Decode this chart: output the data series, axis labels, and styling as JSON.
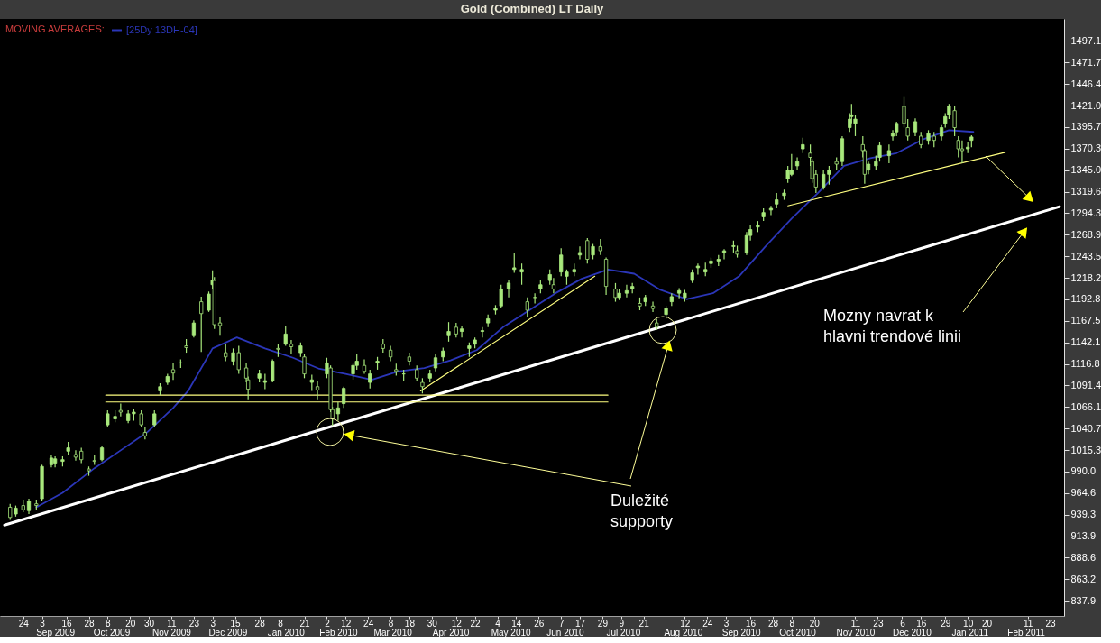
{
  "chart_data": {
    "type": "candlestick",
    "title": "Gold (Combined) LT Daily",
    "legend_title": "MOVING AVERAGES:",
    "legend": "top left",
    "annotations": [
      "Mozny navrat k\nhlavni trendové linii",
      "Duležité\nsupporty"
    ],
    "color": "#a8e87c",
    "x": [
      "2009-08-17",
      "2009-08-20",
      "2009-08-24",
      "2009-08-27",
      "2009-08-31",
      "2009-09-03",
      "2009-09-08",
      "2009-09-10",
      "2009-09-14",
      "2009-09-17",
      "2009-09-21",
      "2009-09-24",
      "2009-09-28",
      "2009-10-01",
      "2009-10-05",
      "2009-10-08",
      "2009-10-12",
      "2009-10-15",
      "2009-10-19",
      "2009-10-22",
      "2009-10-26",
      "2009-10-28",
      "2009-11-02",
      "2009-11-05",
      "2009-11-09",
      "2009-11-12",
      "2009-11-16",
      "2009-11-19",
      "2009-11-23",
      "2009-11-27",
      "2009-12-01",
      "2009-12-03",
      "2009-12-04",
      "2009-12-07",
      "2009-12-10",
      "2009-12-14",
      "2009-12-17",
      "2009-12-21",
      "2009-12-22",
      "2009-12-28",
      "2009-12-31",
      "2010-01-04",
      "2010-01-07",
      "2010-01-11",
      "2010-01-14",
      "2010-01-19",
      "2010-01-21",
      "2010-01-25",
      "2010-01-28",
      "2010-02-02",
      "2010-02-04",
      "2010-02-05",
      "2010-02-08",
      "2010-02-11",
      "2010-02-16",
      "2010-02-18",
      "2010-02-22",
      "2010-02-25",
      "2010-03-01",
      "2010-03-04",
      "2010-03-08",
      "2010-03-11",
      "2010-03-15",
      "2010-03-18",
      "2010-03-22",
      "2010-03-25",
      "2010-03-29",
      "2010-04-01",
      "2010-04-05",
      "2010-04-08",
      "2010-04-12",
      "2010-04-15",
      "2010-04-19",
      "2010-04-22",
      "2010-04-26",
      "2010-04-29",
      "2010-05-03",
      "2010-05-06",
      "2010-05-10",
      "2010-05-13",
      "2010-05-17",
      "2010-05-20",
      "2010-05-24",
      "2010-05-27",
      "2010-06-01",
      "2010-06-03",
      "2010-06-07",
      "2010-06-10",
      "2010-06-14",
      "2010-06-17",
      "2010-06-21",
      "2010-06-24",
      "2010-06-28",
      "2010-07-01",
      "2010-07-06",
      "2010-07-08",
      "2010-07-12",
      "2010-07-15",
      "2010-07-19",
      "2010-07-22",
      "2010-07-26",
      "2010-07-28",
      "2010-08-02",
      "2010-08-05",
      "2010-08-09",
      "2010-08-12",
      "2010-08-16",
      "2010-08-19",
      "2010-08-23",
      "2010-08-26",
      "2010-08-30",
      "2010-09-02",
      "2010-09-07",
      "2010-09-09",
      "2010-09-14",
      "2010-09-16",
      "2010-09-20",
      "2010-09-23",
      "2010-09-27",
      "2010-09-30",
      "2010-10-04",
      "2010-10-06",
      "2010-10-08",
      "2010-10-11",
      "2010-10-14",
      "2010-10-18",
      "2010-10-19",
      "2010-10-21",
      "2010-10-25",
      "2010-10-28",
      "2010-11-01",
      "2010-11-04",
      "2010-11-08",
      "2010-11-09",
      "2010-11-11",
      "2010-11-15",
      "2010-11-16",
      "2010-11-18",
      "2010-11-22",
      "2010-11-24",
      "2010-11-29",
      "2010-12-01",
      "2010-12-03",
      "2010-12-07",
      "2010-12-09",
      "2010-12-13",
      "2010-12-16",
      "2010-12-20",
      "2010-12-23",
      "2010-12-27",
      "2010-12-29",
      "2010-12-31",
      "2011-01-03",
      "2011-01-05",
      "2011-01-07",
      "2011-01-10",
      "2011-01-12"
    ],
    "ohlc": [
      [
        948,
        952,
        933,
        936
      ],
      [
        940,
        950,
        937,
        947
      ],
      [
        950,
        957,
        942,
        945
      ],
      [
        944,
        958,
        940,
        955
      ],
      [
        952,
        957,
        945,
        950
      ],
      [
        958,
        998,
        955,
        996
      ],
      [
        998,
        1010,
        995,
        1006
      ],
      [
        1000,
        1008,
        995,
        1005
      ],
      [
        1002,
        1008,
        996,
        1004
      ],
      [
        1014,
        1025,
        1010,
        1018
      ],
      [
        1010,
        1015,
        1003,
        1007
      ],
      [
        1014,
        1018,
        1000,
        1004
      ],
      [
        993,
        996,
        985,
        991
      ],
      [
        1003,
        1010,
        998,
        1002
      ],
      [
        1004,
        1020,
        1002,
        1018
      ],
      [
        1045,
        1062,
        1042,
        1058
      ],
      [
        1052,
        1062,
        1048,
        1055
      ],
      [
        1062,
        1070,
        1055,
        1060
      ],
      [
        1050,
        1062,
        1047,
        1058
      ],
      [
        1058,
        1064,
        1050,
        1060
      ],
      [
        1058,
        1062,
        1042,
        1045
      ],
      [
        1036,
        1042,
        1028,
        1032
      ],
      [
        1045,
        1062,
        1043,
        1058
      ],
      [
        1085,
        1094,
        1080,
        1090
      ],
      [
        1095,
        1105,
        1092,
        1102
      ],
      [
        1110,
        1118,
        1098,
        1106
      ],
      [
        1118,
        1122,
        1112,
        1118
      ],
      [
        1138,
        1146,
        1130,
        1136
      ],
      [
        1150,
        1168,
        1148,
        1165
      ],
      [
        1190,
        1196,
        1131,
        1176
      ],
      [
        1180,
        1202,
        1178,
        1199
      ],
      [
        1210,
        1227,
        1205,
        1215
      ],
      [
        1215,
        1219,
        1158,
        1163
      ],
      [
        1165,
        1172,
        1150,
        1162
      ],
      [
        1130,
        1140,
        1120,
        1125
      ],
      [
        1120,
        1135,
        1115,
        1130
      ],
      [
        1130,
        1138,
        1105,
        1110
      ],
      [
        1112,
        1118,
        1095,
        1100
      ],
      [
        1098,
        1102,
        1075,
        1087
      ],
      [
        1100,
        1110,
        1095,
        1105
      ],
      [
        1095,
        1105,
        1087,
        1097
      ],
      [
        1097,
        1122,
        1095,
        1120
      ],
      [
        1135,
        1140,
        1125,
        1134
      ],
      [
        1140,
        1162,
        1138,
        1152
      ],
      [
        1140,
        1145,
        1128,
        1137
      ],
      [
        1130,
        1142,
        1125,
        1138
      ],
      [
        1125,
        1128,
        1100,
        1105
      ],
      [
        1095,
        1104,
        1085,
        1098
      ],
      [
        1090,
        1096,
        1075,
        1086
      ],
      [
        1105,
        1124,
        1100,
        1118
      ],
      [
        1112,
        1115,
        1060,
        1063
      ],
      [
        1063,
        1066,
        1044,
        1052
      ],
      [
        1058,
        1072,
        1050,
        1065
      ],
      [
        1070,
        1090,
        1065,
        1088
      ],
      [
        1105,
        1118,
        1098,
        1115
      ],
      [
        1115,
        1128,
        1110,
        1120
      ],
      [
        1115,
        1122,
        1105,
        1108
      ],
      [
        1095,
        1110,
        1088,
        1105
      ],
      [
        1118,
        1125,
        1110,
        1120
      ],
      [
        1140,
        1146,
        1130,
        1135
      ],
      [
        1133,
        1138,
        1120,
        1125
      ],
      [
        1110,
        1117,
        1103,
        1108
      ],
      [
        1105,
        1110,
        1097,
        1105
      ],
      [
        1125,
        1130,
        1115,
        1120
      ],
      [
        1110,
        1115,
        1097,
        1100
      ],
      [
        1095,
        1100,
        1082,
        1090
      ],
      [
        1100,
        1110,
        1095,
        1105
      ],
      [
        1112,
        1128,
        1108,
        1124
      ],
      [
        1125,
        1136,
        1120,
        1132
      ],
      [
        1150,
        1166,
        1143,
        1155
      ],
      [
        1160,
        1165,
        1148,
        1152
      ],
      [
        1155,
        1162,
        1148,
        1158
      ],
      [
        1135,
        1142,
        1125,
        1138
      ],
      [
        1140,
        1148,
        1135,
        1145
      ],
      [
        1155,
        1160,
        1148,
        1156
      ],
      [
        1165,
        1175,
        1160,
        1170
      ],
      [
        1180,
        1186,
        1175,
        1182
      ],
      [
        1185,
        1210,
        1182,
        1205
      ],
      [
        1205,
        1215,
        1195,
        1212
      ],
      [
        1228,
        1248,
        1224,
        1230
      ],
      [
        1225,
        1235,
        1210,
        1228
      ],
      [
        1190,
        1195,
        1172,
        1180
      ],
      [
        1195,
        1200,
        1188,
        1195
      ],
      [
        1205,
        1215,
        1200,
        1210
      ],
      [
        1215,
        1228,
        1210,
        1222
      ],
      [
        1210,
        1218,
        1200,
        1205
      ],
      [
        1225,
        1253,
        1220,
        1245
      ],
      [
        1220,
        1228,
        1210,
        1225
      ],
      [
        1225,
        1235,
        1220,
        1228
      ],
      [
        1245,
        1255,
        1240,
        1248
      ],
      [
        1262,
        1265,
        1235,
        1240
      ],
      [
        1245,
        1258,
        1240,
        1255
      ],
      [
        1255,
        1264,
        1245,
        1250
      ],
      [
        1240,
        1242,
        1198,
        1208
      ],
      [
        1205,
        1212,
        1190,
        1195
      ],
      [
        1195,
        1205,
        1192,
        1200
      ],
      [
        1200,
        1210,
        1195,
        1203
      ],
      [
        1205,
        1212,
        1200,
        1208
      ],
      [
        1188,
        1195,
        1180,
        1185
      ],
      [
        1190,
        1198,
        1185,
        1195
      ],
      [
        1185,
        1190,
        1178,
        1182
      ],
      [
        1165,
        1170,
        1157,
        1160
      ],
      [
        1175,
        1185,
        1170,
        1182
      ],
      [
        1190,
        1200,
        1185,
        1196
      ],
      [
        1200,
        1206,
        1194,
        1203
      ],
      [
        1195,
        1204,
        1190,
        1200
      ],
      [
        1215,
        1228,
        1212,
        1224
      ],
      [
        1230,
        1235,
        1222,
        1232
      ],
      [
        1225,
        1236,
        1220,
        1228
      ],
      [
        1235,
        1242,
        1230,
        1238
      ],
      [
        1238,
        1245,
        1232,
        1240
      ],
      [
        1248,
        1252,
        1240,
        1250
      ],
      [
        1255,
        1262,
        1248,
        1256
      ],
      [
        1250,
        1256,
        1242,
        1246
      ],
      [
        1248,
        1272,
        1245,
        1268
      ],
      [
        1268,
        1280,
        1262,
        1275
      ],
      [
        1278,
        1285,
        1272,
        1280
      ],
      [
        1290,
        1300,
        1285,
        1295
      ],
      [
        1298,
        1303,
        1292,
        1300
      ],
      [
        1305,
        1318,
        1300,
        1310
      ],
      [
        1315,
        1322,
        1310,
        1318
      ],
      [
        1335,
        1350,
        1330,
        1345
      ],
      [
        1340,
        1364,
        1338,
        1345
      ],
      [
        1350,
        1360,
        1345,
        1355
      ],
      [
        1370,
        1383,
        1365,
        1375
      ],
      [
        1365,
        1375,
        1350,
        1360
      ],
      [
        1355,
        1358,
        1330,
        1335
      ],
      [
        1340,
        1345,
        1318,
        1325
      ],
      [
        1325,
        1345,
        1322,
        1340
      ],
      [
        1340,
        1350,
        1328,
        1345
      ],
      [
        1355,
        1360,
        1345,
        1352
      ],
      [
        1355,
        1385,
        1350,
        1382
      ],
      [
        1395,
        1412,
        1390,
        1405
      ],
      [
        1408,
        1423,
        1400,
        1410
      ],
      [
        1400,
        1410,
        1385,
        1405
      ],
      [
        1375,
        1385,
        1360,
        1368
      ],
      [
        1368,
        1370,
        1329,
        1340
      ],
      [
        1345,
        1355,
        1340,
        1352
      ],
      [
        1350,
        1362,
        1345,
        1355
      ],
      [
        1360,
        1378,
        1355,
        1374
      ],
      [
        1362,
        1375,
        1353,
        1368
      ],
      [
        1385,
        1392,
        1380,
        1388
      ],
      [
        1390,
        1402,
        1385,
        1400
      ],
      [
        1420,
        1431,
        1395,
        1400
      ],
      [
        1395,
        1405,
        1380,
        1385
      ],
      [
        1390,
        1406,
        1385,
        1402
      ],
      [
        1385,
        1390,
        1371,
        1375
      ],
      [
        1380,
        1392,
        1375,
        1388
      ],
      [
        1385,
        1390,
        1372,
        1380
      ],
      [
        1385,
        1398,
        1380,
        1395
      ],
      [
        1400,
        1412,
        1395,
        1408
      ],
      [
        1410,
        1423,
        1405,
        1420
      ],
      [
        1415,
        1420,
        1385,
        1395
      ],
      [
        1380,
        1385,
        1360,
        1370
      ],
      [
        1370,
        1380,
        1353,
        1368
      ],
      [
        1370,
        1378,
        1365,
        1372
      ],
      [
        1380,
        1386,
        1372,
        1384
      ]
    ],
    "series": [
      {
        "type": "line",
        "name": "[25Dy 13DH-04]",
        "color": "#2b36b8",
        "x": [
          "2009-08-31",
          "2009-09-14",
          "2009-10-01",
          "2009-10-15",
          "2009-10-29",
          "2009-11-12",
          "2009-11-20",
          "2009-12-03",
          "2009-12-16",
          "2009-12-31",
          "2010-01-15",
          "2010-01-29",
          "2010-02-12",
          "2010-02-26",
          "2010-03-12",
          "2010-03-26",
          "2010-04-09",
          "2010-04-23",
          "2010-05-07",
          "2010-05-21",
          "2010-06-04",
          "2010-06-18",
          "2010-07-02",
          "2010-07-16",
          "2010-07-30",
          "2010-08-13",
          "2010-08-27",
          "2010-09-10",
          "2010-09-24",
          "2010-10-08",
          "2010-10-22",
          "2010-11-05",
          "2010-11-19",
          "2010-12-03",
          "2010-12-17",
          "2010-12-31",
          "2011-01-13"
        ],
        "values": [
          948,
          965,
          994,
          1015,
          1036,
          1065,
          1085,
          1135,
          1148,
          1135,
          1124,
          1111,
          1105,
          1098,
          1108,
          1112,
          1121,
          1133,
          1160,
          1180,
          1200,
          1217,
          1228,
          1223,
          1204,
          1193,
          1200,
          1220,
          1255,
          1288,
          1318,
          1350,
          1359,
          1365,
          1381,
          1392,
          1390
        ]
      },
      {
        "type": "line",
        "color": "#ffffff",
        "x": [
          "2009-08-14",
          "2011-02-28"
        ],
        "values": [
          927,
          1302
        ]
      },
      {
        "type": "line",
        "color": "#ffff80",
        "x": [
          "2009-10-07",
          "2010-07-02"
        ],
        "values": [
          1080,
          1080
        ]
      },
      {
        "type": "line",
        "color": "#ffff80",
        "x": [
          "2009-10-07",
          "2010-07-02"
        ],
        "values": [
          1072,
          1072
        ]
      },
      {
        "type": "line",
        "color": "#ffff80",
        "x": [
          "2010-03-24",
          "2010-06-25"
        ],
        "values": [
          1085,
          1220
        ]
      },
      {
        "type": "line",
        "color": "#ffff80",
        "x": [
          "2010-10-06",
          "2011-01-30"
        ],
        "values": [
          1303,
          1366
        ]
      }
    ],
    "xlim": [
      "2009-08-14",
      "2011-02-28"
    ],
    "ylim": [
      820,
      1523
    ],
    "x2lim": [
      "2009-08-14",
      "2011-02-28"
    ],
    "xticks": [
      {
        "value": "2009-08-24",
        "label": "24"
      },
      {
        "value": "2009-09-03",
        "label": "3"
      },
      {
        "value": "2009-09-16",
        "label": "16"
      },
      {
        "value": "2009-09-28",
        "label": "28"
      },
      {
        "value": "2009-10-08",
        "label": "8"
      },
      {
        "value": "2009-10-20",
        "label": "20"
      },
      {
        "value": "2009-10-30",
        "label": "30"
      },
      {
        "value": "2009-11-11",
        "label": "11"
      },
      {
        "value": "2009-11-23",
        "label": "23"
      },
      {
        "value": "2009-12-03",
        "label": "3"
      },
      {
        "value": "2009-12-15",
        "label": "15"
      },
      {
        "value": "2009-12-28",
        "label": "28"
      },
      {
        "value": "2010-01-08",
        "label": "8"
      },
      {
        "value": "2010-01-21",
        "label": "21"
      },
      {
        "value": "2010-02-02",
        "label": "2"
      },
      {
        "value": "2010-02-12",
        "label": "12"
      },
      {
        "value": "2010-02-24",
        "label": "24"
      },
      {
        "value": "2010-03-08",
        "label": "8"
      },
      {
        "value": "2010-03-18",
        "label": "18"
      },
      {
        "value": "2010-03-30",
        "label": "30"
      },
      {
        "value": "2010-04-12",
        "label": "12"
      },
      {
        "value": "2010-04-22",
        "label": "22"
      },
      {
        "value": "2010-05-04",
        "label": "4"
      },
      {
        "value": "2010-05-14",
        "label": "14"
      },
      {
        "value": "2010-05-26",
        "label": "26"
      },
      {
        "value": "2010-06-07",
        "label": "7"
      },
      {
        "value": "2010-06-17",
        "label": "17"
      },
      {
        "value": "2010-06-29",
        "label": "29"
      },
      {
        "value": "2010-07-09",
        "label": "9"
      },
      {
        "value": "2010-07-21",
        "label": "21"
      },
      {
        "value": "2010-08-12",
        "label": "12"
      },
      {
        "value": "2010-08-24",
        "label": "24"
      },
      {
        "value": "2010-09-03",
        "label": "3"
      },
      {
        "value": "2010-09-16",
        "label": "16"
      },
      {
        "value": "2010-09-28",
        "label": "28"
      },
      {
        "value": "2010-10-08",
        "label": "8"
      },
      {
        "value": "2010-10-20",
        "label": "20"
      },
      {
        "value": "2010-11-11",
        "label": "11"
      },
      {
        "value": "2010-11-23",
        "label": "23"
      },
      {
        "value": "2010-12-06",
        "label": "6"
      },
      {
        "value": "2010-12-16",
        "label": "16"
      },
      {
        "value": "2010-12-29",
        "label": "29"
      },
      {
        "value": "2011-01-10",
        "label": "10"
      },
      {
        "value": "2011-01-20",
        "label": "20"
      },
      {
        "value": "2011-02-11",
        "label": "11"
      },
      {
        "value": "2011-02-23",
        "label": "23"
      }
    ],
    "x2ticks": [
      {
        "value": "2009-09-10",
        "label": "Sep 2009"
      },
      {
        "value": "2009-10-10",
        "label": "Oct 2009"
      },
      {
        "value": "2009-11-11",
        "label": "Nov 2009"
      },
      {
        "value": "2009-12-11",
        "label": "Dec 2009"
      },
      {
        "value": "2010-01-11",
        "label": "Jan 2010"
      },
      {
        "value": "2010-02-08",
        "label": "Feb 2010"
      },
      {
        "value": "2010-03-09",
        "label": "Mar 2010"
      },
      {
        "value": "2010-04-09",
        "label": "Apr 2010"
      },
      {
        "value": "2010-05-11",
        "label": "May 2010"
      },
      {
        "value": "2010-06-09",
        "label": "Jun 2010"
      },
      {
        "value": "2010-07-10",
        "label": "Jul 2010"
      },
      {
        "value": "2010-08-11",
        "label": "Aug 2010"
      },
      {
        "value": "2010-09-11",
        "label": "Sep 2010"
      },
      {
        "value": "2010-10-11",
        "label": "Oct 2010"
      },
      {
        "value": "2010-11-11",
        "label": "Nov 2010"
      },
      {
        "value": "2010-12-11",
        "label": "Dec 2010"
      },
      {
        "value": "2011-01-11",
        "label": "Jan 2011"
      },
      {
        "value": "2011-02-10",
        "label": "Feb 2011"
      }
    ],
    "yticks": [
      1497.1,
      1471.7,
      1446.4,
      {
        "value": 1421.0,
        "label": "1421.0"
      },
      1395.7,
      1370.3,
      {
        "value": 1345.0,
        "label": "1345.0"
      },
      1319.6,
      1294.3,
      1268.9,
      1243.5,
      1218.2,
      1192.8,
      1167.5,
      1142.1,
      1116.8,
      1091.4,
      1066.1,
      1040.7,
      1015.3,
      {
        "value": 990.0,
        "label": "990.0"
      },
      964.6,
      939.3,
      913.9,
      888.6,
      863.2,
      837.9
    ]
  }
}
